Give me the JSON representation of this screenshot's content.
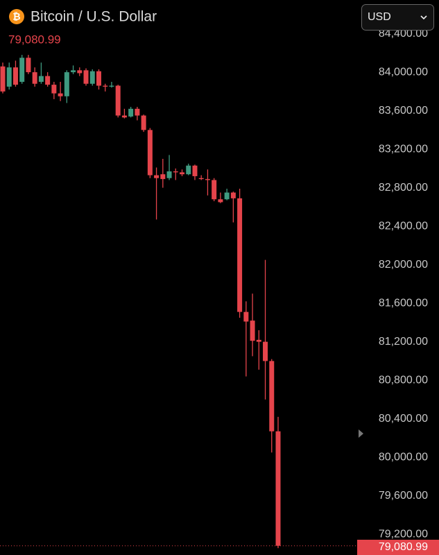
{
  "chart_data": {
    "type": "candlestick",
    "icon_symbol": "₿",
    "title": "Bitcoin / U.S. Dollar",
    "currency": "USD",
    "last_price": {
      "value": 79080.99,
      "label": "79,080.99"
    },
    "up_color": "#3f9a80",
    "down_color": "#e5444b",
    "ylim": [
      79050,
      84750
    ],
    "yticks": [
      {
        "value": 79200,
        "label": "79,200.00"
      },
      {
        "value": 79600,
        "label": "79,600.00"
      },
      {
        "value": 80000,
        "label": "80,000.00"
      },
      {
        "value": 80400,
        "label": "80,400.00"
      },
      {
        "value": 80800,
        "label": "80,800.00"
      },
      {
        "value": 81200,
        "label": "81,200.00"
      },
      {
        "value": 81600,
        "label": "81,600.00"
      },
      {
        "value": 82000,
        "label": "82,000.00"
      },
      {
        "value": 82400,
        "label": "82,400.00"
      },
      {
        "value": 82800,
        "label": "82,800.00"
      },
      {
        "value": 83200,
        "label": "83,200.00"
      },
      {
        "value": 83600,
        "label": "83,600.00"
      },
      {
        "value": 84000,
        "label": "84,000.00"
      },
      {
        "value": 84400,
        "label": "84,400.00"
      }
    ],
    "open": [
      84060,
      83850,
      84050,
      83900,
      84150,
      84000,
      83900,
      83960,
      83870,
      83780,
      83750,
      84000,
      84020,
      84020,
      83880,
      84010,
      83860,
      83850,
      83860,
      83550,
      83540,
      83620,
      83550,
      83400,
      82930,
      82940,
      82900,
      82970,
      82960,
      82940,
      83030,
      82900,
      82890,
      82880,
      82680,
      82680,
      82750,
      82690,
      81510,
      81420,
      81220,
      81200,
      81000,
      80270
    ],
    "high": [
      84100,
      84100,
      84120,
      84180,
      84180,
      84050,
      84100,
      84000,
      83900,
      83900,
      84020,
      84070,
      84050,
      84040,
      84030,
      84030,
      83880,
      83900,
      83870,
      83620,
      83640,
      83640,
      83560,
      83420,
      83010,
      83100,
      83140,
      83000,
      82990,
      83050,
      83040,
      82930,
      82990,
      82900,
      82750,
      82790,
      82760,
      82790,
      81620,
      81700,
      81320,
      82050,
      81020,
      80420
    ],
    "low": [
      83780,
      83820,
      83850,
      83880,
      83980,
      83850,
      83880,
      83850,
      83720,
      83700,
      83680,
      83980,
      83960,
      83860,
      83860,
      83820,
      83800,
      83840,
      83530,
      83520,
      83530,
      83500,
      83380,
      82900,
      82470,
      82800,
      82880,
      82880,
      82920,
      82930,
      82880,
      82880,
      82720,
      82660,
      82640,
      82670,
      82440,
      81450,
      80840,
      81050,
      80910,
      80600,
      80050,
      79056
    ],
    "close": [
      83800,
      84050,
      83870,
      84150,
      84000,
      83880,
      83960,
      83870,
      83780,
      83750,
      84000,
      84020,
      83990,
      83880,
      84010,
      83860,
      83850,
      83860,
      83550,
      83530,
      83620,
      83550,
      83400,
      82930,
      82900,
      82890,
      82970,
      82960,
      82940,
      83030,
      82920,
      82890,
      82880,
      82680,
      82650,
      82750,
      82690,
      81510,
      81410,
      81210,
      81200,
      81000,
      80270,
      79081
    ]
  }
}
